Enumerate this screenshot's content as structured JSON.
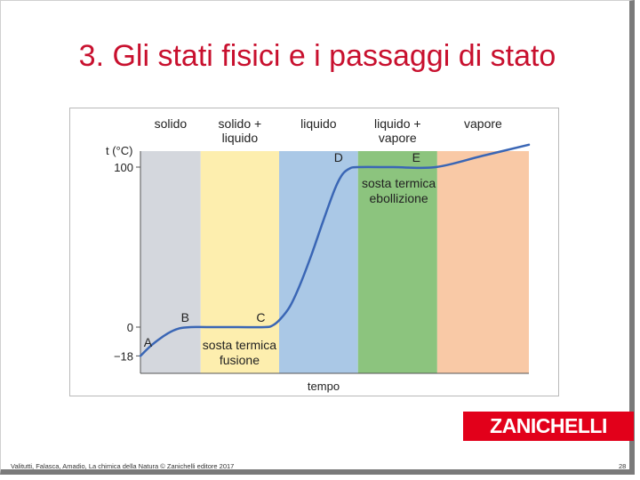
{
  "slide": {
    "title": "3. Gli stati fisici e i passaggi di stato",
    "footer_credit": "Valitutti, Falasca, Amadio, La chimica della Natura © Zanichelli editore 2017",
    "page_number": "28",
    "logo_text": "ZANICHELLI"
  },
  "colors": {
    "title": "#c8102e",
    "curve": "#3a66b5",
    "logo": "#e2001a"
  },
  "chart_data": {
    "type": "line",
    "title": "",
    "xlabel": "tempo",
    "ylabel": "t (°C)",
    "yticks": [
      {
        "value": 100,
        "label": "100"
      },
      {
        "value": 0,
        "label": "0"
      },
      {
        "value": -18,
        "label": "−18"
      }
    ],
    "ylim": [
      -30,
      120
    ],
    "xlim": [
      0,
      100
    ],
    "grid": false,
    "regions": [
      {
        "id": "solid",
        "lines": [
          "solido"
        ],
        "x0": 0,
        "x1": 15.5,
        "color": "#d4d7dd"
      },
      {
        "id": "solid-liquid",
        "lines": [
          "solido +",
          "liquido"
        ],
        "x0": 15.5,
        "x1": 35.7,
        "color": "#fdeeae"
      },
      {
        "id": "liquid",
        "lines": [
          "liquido"
        ],
        "x0": 35.7,
        "x1": 56.0,
        "color": "#aac8e6"
      },
      {
        "id": "liquid-vapor",
        "lines": [
          "liquido +",
          "vapore"
        ],
        "x0": 56.0,
        "x1": 76.4,
        "color": "#8cc47e"
      },
      {
        "id": "vapor",
        "lines": [
          "vapore"
        ],
        "x0": 76.4,
        "x1": 100,
        "color": "#f9c9a6"
      }
    ],
    "points": [
      {
        "label": "A",
        "x": 1,
        "y": -11,
        "label_dx": -1,
        "label_dy": 1
      },
      {
        "label": "B",
        "x": 11.5,
        "y": 0,
        "label_dx": 0,
        "label_dy": 0
      },
      {
        "label": "C",
        "x": 31,
        "y": 0,
        "label_dx": 0,
        "label_dy": 0
      },
      {
        "label": "D",
        "x": 51,
        "y": 100,
        "label_dx": 0,
        "label_dy": 0
      },
      {
        "label": "E",
        "x": 71,
        "y": 100,
        "label_dx": 0,
        "label_dy": 0
      }
    ],
    "curve": [
      {
        "x": 0,
        "y": -18
      },
      {
        "x": 3,
        "y": -11
      },
      {
        "x": 7,
        "y": -4
      },
      {
        "x": 10,
        "y": -0.8
      },
      {
        "x": 13,
        "y": 0
      },
      {
        "x": 17,
        "y": 0
      },
      {
        "x": 25,
        "y": 0
      },
      {
        "x": 32,
        "y": 0
      },
      {
        "x": 34,
        "y": 1
      },
      {
        "x": 36,
        "y": 5
      },
      {
        "x": 38.5,
        "y": 13
      },
      {
        "x": 41,
        "y": 26
      },
      {
        "x": 44,
        "y": 45
      },
      {
        "x": 47,
        "y": 66
      },
      {
        "x": 50,
        "y": 86
      },
      {
        "x": 52,
        "y": 95.5
      },
      {
        "x": 54,
        "y": 99.3
      },
      {
        "x": 56,
        "y": 100
      },
      {
        "x": 65,
        "y": 100
      },
      {
        "x": 76,
        "y": 100
      },
      {
        "x": 88,
        "y": 107
      },
      {
        "x": 100,
        "y": 114
      }
    ],
    "annotations": [
      {
        "id": "fusion-plateau",
        "lines": [
          "sosta termica",
          "fusione"
        ],
        "x": 25.5,
        "y": -6
      },
      {
        "id": "boiling-plateau",
        "lines": [
          "sosta termica",
          "ebollizione"
        ],
        "x": 66.5,
        "y": 95
      }
    ]
  }
}
